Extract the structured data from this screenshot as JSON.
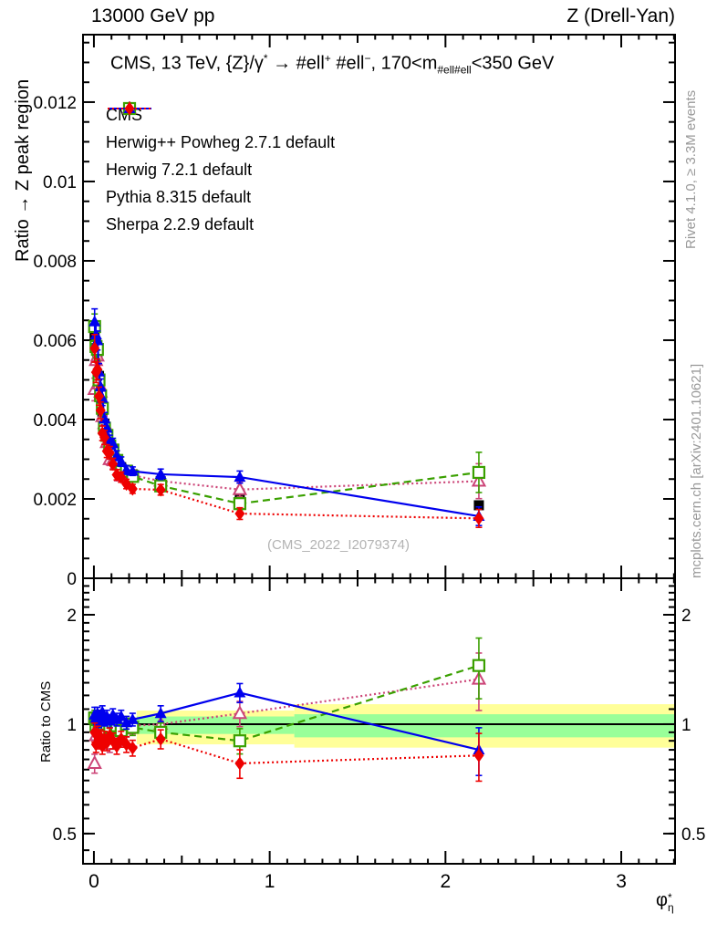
{
  "header": {
    "left": "13000 GeV pp",
    "right": "Z (Drell-Yan)"
  },
  "title_parts": [
    {
      "t": "CMS, 13 TeV, {Z}/"
    },
    {
      "t": "γ"
    },
    {
      "t": "*",
      "style": "sup"
    },
    {
      "t": " →  #ell"
    },
    {
      "t": "+",
      "style": "sup"
    },
    {
      "t": " #ell"
    },
    {
      "t": "−",
      "style": "sup"
    },
    {
      "t": ", 170<m"
    },
    {
      "t": "#ell#ell",
      "style": "sub"
    },
    {
      "t": "<350 GeV"
    }
  ],
  "watermark": "(CMS_2022_I2079374)",
  "side_notes": {
    "rivet": "Rivet 4.1.0, ≥ 3.3M events",
    "mcplots": "mcplots.cern.ch [arXiv:2401.10621]"
  },
  "colors": {
    "cms": "#000000",
    "herwigpp": "#cc4477",
    "herwig7": "#3aa000",
    "pythia": "#0000ee",
    "sherpa": "#ee0000",
    "band_outer": "#ffff99",
    "band_inner": "#99ff99",
    "gray_text": "#999999"
  },
  "chart_data": {
    "type": "line",
    "title": "CMS, 13 TeV, {Z}/gamma* -> #ell+ #ell-, 170<m_#ell#ell<350 GeV",
    "xlabel_base": "φ",
    "xlabel_sup": "*",
    "xlabel_sub": "η",
    "ylabel_main": "Ratio → Z peak region",
    "ylabel_ratio": "Ratio to CMS",
    "xlim": [
      -0.062,
      3.306
    ],
    "ylim_main": [
      0,
      0.0137
    ],
    "ylim_ratio": [
      0.413,
      2.52
    ],
    "ratio_scale": "log",
    "grid": false,
    "legend_position": "top-left",
    "x_major_ticks": [
      0,
      1,
      2,
      3
    ],
    "x_tick_labels": [
      "0",
      "1",
      "2",
      "3"
    ],
    "y_main_major_ticks": [
      0,
      0.002,
      0.004,
      0.006,
      0.008,
      0.01,
      0.012
    ],
    "y_main_tick_labels": [
      "0",
      "0.002",
      "0.004",
      "0.006",
      "0.008",
      "0.01",
      "0.012"
    ],
    "y_ratio_major_ticks": [
      0.5,
      1,
      2
    ],
    "y_ratio_tick_labels": [
      "0.5",
      "1",
      "2"
    ],
    "x": [
      0.004,
      0.012,
      0.02,
      0.029,
      0.038,
      0.048,
      0.06,
      0.074,
      0.09,
      0.108,
      0.13,
      0.155,
      0.185,
      0.22,
      0.38,
      0.83,
      2.19
    ],
    "cms_values": [
      0.0061,
      0.0059,
      0.0056,
      0.0051,
      0.0046,
      0.0042,
      0.0039,
      0.0036,
      0.0034,
      0.0032,
      0.003,
      0.0028,
      0.0027,
      0.00262,
      0.00245,
      0.00209,
      0.00184
    ],
    "cms_err_rel": [
      0.03,
      0.03,
      0.03,
      0.03,
      0.03,
      0.03,
      0.03,
      0.03,
      0.03,
      0.03,
      0.03,
      0.03,
      0.03,
      0.03,
      0.035,
      0.04,
      0.05
    ],
    "series": [
      {
        "name": "CMS",
        "key": "cms",
        "color_key": "cms",
        "marker": "filled-square",
        "line": "none",
        "is_data": true,
        "ratio": [
          1,
          1,
          1,
          1,
          1,
          1,
          1,
          1,
          1,
          1,
          1,
          1,
          1,
          1,
          1,
          1,
          1
        ],
        "err_rel": [
          0.03,
          0.03,
          0.03,
          0.03,
          0.03,
          0.03,
          0.03,
          0.03,
          0.03,
          0.03,
          0.03,
          0.03,
          0.03,
          0.03,
          0.035,
          0.04,
          0.05
        ]
      },
      {
        "name": "Herwig++ Powheg 2.7.1 default",
        "key": "herwigpp",
        "color_key": "herwigpp",
        "marker": "open-triangle",
        "line": "dotted",
        "is_data": false,
        "ratio": [
          0.78,
          0.93,
          1.0,
          0.96,
          1.02,
          0.97,
          1.0,
          0.95,
          0.88,
          0.93,
          0.96,
          0.92,
          0.97,
          0.99,
          1.0,
          1.07,
          1.33
        ],
        "err_rel": [
          0.06,
          0.05,
          0.05,
          0.05,
          0.05,
          0.05,
          0.05,
          0.05,
          0.05,
          0.05,
          0.05,
          0.05,
          0.05,
          0.05,
          0.06,
          0.08,
          0.18
        ]
      },
      {
        "name": "Herwig 7.2.1 default",
        "key": "herwig7",
        "color_key": "herwig7",
        "marker": "open-square",
        "line": "dashed",
        "is_data": false,
        "ratio": [
          1.04,
          0.99,
          1.03,
          0.98,
          1.0,
          1.02,
          0.97,
          1.0,
          0.98,
          1.01,
          0.99,
          0.96,
          1.0,
          0.98,
          0.95,
          0.9,
          1.45
        ],
        "err_rel": [
          0.05,
          0.05,
          0.05,
          0.05,
          0.05,
          0.05,
          0.05,
          0.05,
          0.05,
          0.05,
          0.05,
          0.05,
          0.05,
          0.05,
          0.06,
          0.08,
          0.19
        ]
      },
      {
        "name": "Pythia 8.315 default",
        "key": "pythia",
        "color_key": "pythia",
        "marker": "filled-triangle",
        "line": "solid",
        "is_data": false,
        "ratio": [
          1.06,
          1.04,
          1.07,
          1.02,
          1.05,
          1.08,
          1.03,
          1.05,
          1.02,
          1.06,
          1.03,
          1.05,
          1.01,
          1.03,
          1.07,
          1.22,
          0.85
        ],
        "err_rel": [
          0.05,
          0.04,
          0.04,
          0.04,
          0.04,
          0.04,
          0.04,
          0.04,
          0.04,
          0.04,
          0.04,
          0.04,
          0.04,
          0.04,
          0.05,
          0.06,
          0.15
        ]
      },
      {
        "name": "Sherpa 2.2.9 default",
        "key": "sherpa",
        "color_key": "sherpa",
        "marker": "filled-diamond",
        "line": "dotted",
        "is_data": false,
        "ratio": [
          0.95,
          0.88,
          0.94,
          0.9,
          0.92,
          0.87,
          0.91,
          0.89,
          0.93,
          0.9,
          0.87,
          0.91,
          0.88,
          0.86,
          0.91,
          0.78,
          0.82
        ],
        "err_rel": [
          0.06,
          0.05,
          0.05,
          0.05,
          0.05,
          0.05,
          0.05,
          0.05,
          0.05,
          0.05,
          0.05,
          0.05,
          0.05,
          0.05,
          0.06,
          0.09,
          0.15
        ]
      }
    ],
    "ratio_bands": [
      {
        "x0": 0.243,
        "x1": 1.14,
        "outer": [
          0.88,
          1.09
        ],
        "inner": [
          0.94,
          1.05
        ]
      },
      {
        "x0": 1.14,
        "x1": 3.306,
        "outer": [
          0.862,
          1.135
        ],
        "inner": [
          0.92,
          1.065
        ]
      }
    ],
    "ratio_reference": 1
  }
}
